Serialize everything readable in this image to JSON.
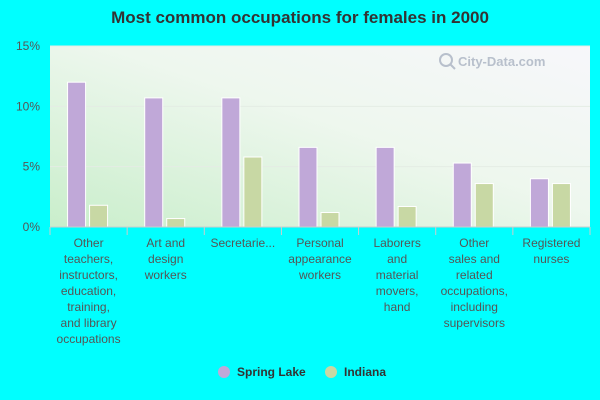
{
  "chart_data": {
    "type": "bar",
    "title": "Most common occupations for females in 2000",
    "xlabel": "",
    "ylabel": "",
    "ylim": [
      0,
      15
    ],
    "yticks": [
      0,
      5,
      10,
      15
    ],
    "ytick_labels": [
      "0%",
      "5%",
      "10%",
      "15%"
    ],
    "categories": [
      "Other teachers, instructors, education, training, and library occupations",
      "Art and design workers",
      "Secretarie...",
      "Personal appearance workers",
      "Laborers and material movers, hand",
      "Other sales and related occupations, including supervisors",
      "Registered nurses"
    ],
    "category_lines": [
      [
        "Other",
        "teachers,",
        "instructors,",
        "education,",
        "training,",
        "and library",
        "occupations"
      ],
      [
        "Art and",
        "design",
        "workers"
      ],
      [
        "Secretarie..."
      ],
      [
        "Personal",
        "appearance",
        "workers"
      ],
      [
        "Laborers",
        "and",
        "material",
        "movers,",
        "hand"
      ],
      [
        "Other",
        "sales and",
        "related",
        "occupations,",
        "including",
        "supervisors"
      ],
      [
        "Registered",
        "nurses"
      ]
    ],
    "series": [
      {
        "name": "Spring Lake",
        "color": "#c0a8d8",
        "values": [
          12.0,
          10.7,
          10.7,
          6.6,
          6.6,
          5.3,
          4.0
        ]
      },
      {
        "name": "Indiana",
        "color": "#c8d8a4",
        "values": [
          1.8,
          0.7,
          5.8,
          1.2,
          1.7,
          3.6,
          3.6
        ]
      }
    ],
    "grid": true,
    "legend_position": "bottom"
  },
  "watermark": {
    "text": "City-Data.com",
    "icon": "magnifier-icon"
  }
}
